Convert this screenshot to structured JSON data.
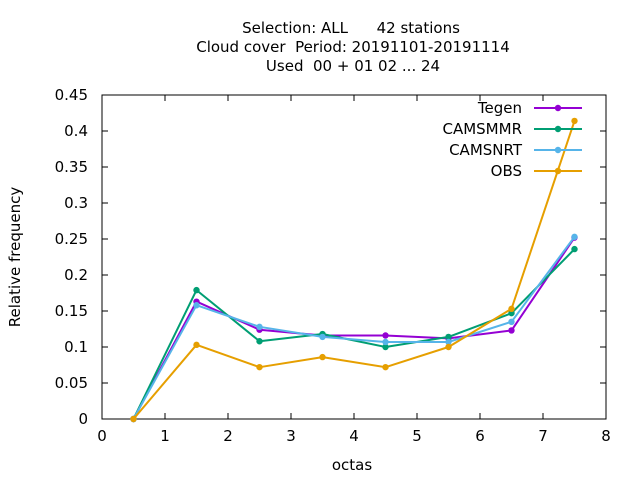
{
  "chart_data": {
    "type": "line",
    "title_lines": [
      "Selection: ALL      42 stations",
      "Cloud cover  Period: 20191101-20191114",
      "Used  00 + 01 02 ... 24"
    ],
    "xlabel": "octas",
    "ylabel": "Relative frequency",
    "xlim": [
      0,
      8
    ],
    "ylim": [
      0,
      0.45
    ],
    "xticks": [
      0,
      1,
      2,
      3,
      4,
      5,
      6,
      7,
      8
    ],
    "xtick_labels": [
      "0",
      "1",
      "2",
      "3",
      "4",
      "5",
      "6",
      "7",
      "8"
    ],
    "yticks": [
      0,
      0.05,
      0.1,
      0.15,
      0.2,
      0.25,
      0.3,
      0.35,
      0.4,
      0.45
    ],
    "ytick_labels": [
      "0",
      "0.05",
      "0.1",
      "0.15",
      "0.2",
      "0.25",
      "0.3",
      "0.35",
      "0.4",
      "0.45"
    ],
    "grid": false,
    "legend_position": "top-right",
    "x": [
      0.5,
      1.5,
      2.5,
      3.5,
      4.5,
      5.5,
      6.5,
      7.5
    ],
    "series": [
      {
        "name": "Tegen",
        "color": "#9400d3",
        "values": [
          0.0,
          0.163,
          0.124,
          0.116,
          0.116,
          0.112,
          0.123,
          0.252
        ]
      },
      {
        "name": "CAMSMMR",
        "color": "#009e73",
        "values": [
          0.0,
          0.179,
          0.108,
          0.118,
          0.1,
          0.114,
          0.147,
          0.236
        ]
      },
      {
        "name": "CAMSNRT",
        "color": "#56b4e9",
        "values": [
          0.0,
          0.158,
          0.128,
          0.114,
          0.107,
          0.107,
          0.135,
          0.253
        ]
      },
      {
        "name": "OBS",
        "color": "#e69f00",
        "values": [
          0.0,
          0.103,
          0.072,
          0.086,
          0.072,
          0.1,
          0.153,
          0.414
        ]
      }
    ]
  }
}
